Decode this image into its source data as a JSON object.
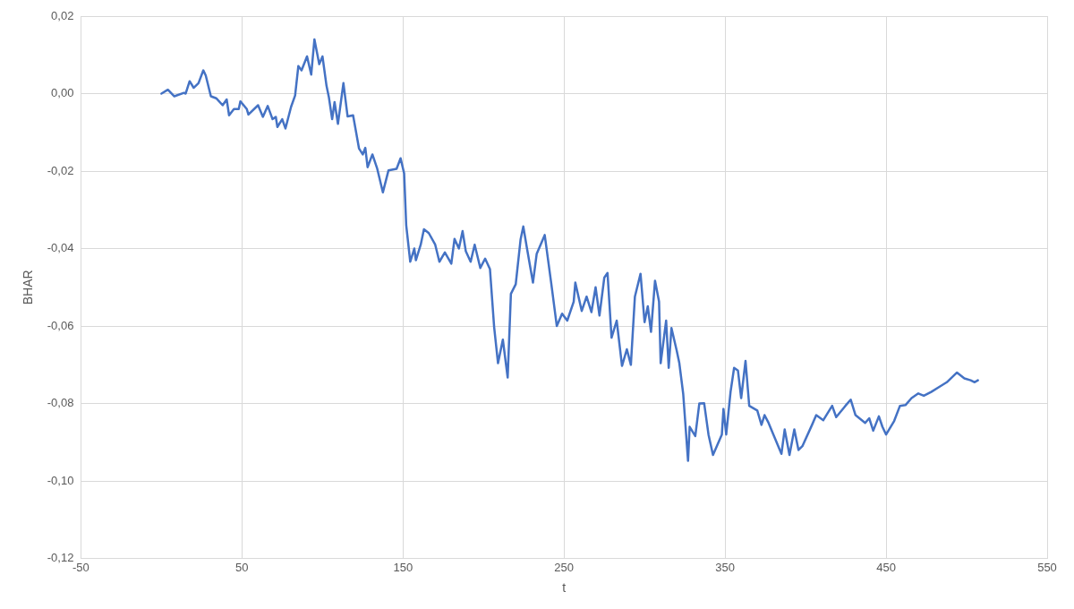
{
  "chart_data": {
    "type": "line",
    "xlabel": "t",
    "ylabel": "BHAR",
    "xlim": [
      -50,
      550
    ],
    "ylim": [
      -0.12,
      0.02
    ],
    "xticks": [
      -50,
      50,
      150,
      250,
      350,
      450,
      550
    ],
    "yticks": [
      {
        "value": -0.12,
        "label": "-0,12"
      },
      {
        "value": -0.1,
        "label": "-0,10"
      },
      {
        "value": -0.08,
        "label": "-0,08"
      },
      {
        "value": -0.06,
        "label": "-0,06"
      },
      {
        "value": -0.04,
        "label": "-0,04"
      },
      {
        "value": -0.02,
        "label": "-0,02"
      },
      {
        "value": 0,
        "label": "0,00"
      },
      {
        "value": 0.02,
        "label": "0,02"
      }
    ],
    "grid": true,
    "legend": false,
    "marker": "none",
    "line_style": "solid",
    "series": [
      {
        "color": "#4472c4",
        "x": [
          0,
          4,
          8,
          14,
          15,
          17.5,
          20,
          23,
          26,
          27.5,
          30.7,
          34,
          38,
          40.5,
          42,
          45,
          48,
          49,
          53,
          54,
          60,
          63,
          66,
          69,
          71,
          72,
          75,
          77,
          80.5,
          83,
          85,
          87,
          90.4,
          93,
          95,
          98,
          100,
          102.5,
          104,
          106,
          107.5,
          109.6,
          113,
          115.6,
          119,
          122.7,
          125,
          126.6,
          128,
          131,
          134,
          137.5,
          141,
          146,
          148.5,
          150.7,
          152,
          154.5,
          157,
          158,
          161,
          163,
          166,
          170,
          172.6,
          176,
          180,
          182,
          184.7,
          187,
          189,
          192,
          194.5,
          198,
          201,
          204,
          206.6,
          209,
          212,
          215,
          217,
          220,
          223,
          224.7,
          227,
          230.7,
          233,
          238,
          242,
          245.5,
          248.8,
          252,
          256,
          257,
          261,
          264,
          267,
          269.6,
          272,
          275,
          277,
          279.5,
          282.7,
          286,
          289,
          291.5,
          294,
          297.5,
          300,
          302,
          304,
          306.5,
          309,
          310,
          313.4,
          315,
          316.7,
          320,
          321.6,
          324,
          327,
          328,
          331.5,
          334,
          337,
          339.7,
          342.5,
          348,
          349,
          350.7,
          353.4,
          355.6,
          358,
          360,
          362.7,
          365,
          370,
          372.6,
          374.5,
          377,
          380,
          385,
          387,
          390,
          393,
          395.6,
          398,
          404,
          406.6,
          411,
          416.5,
          419,
          424.7,
          428,
          431,
          437,
          439.5,
          442,
          445.5,
          447.7,
          450,
          455,
          458.6,
          462,
          465.8,
          470,
          473.4,
          478,
          483,
          487.7,
          494,
          498.6,
          502.5,
          505,
          507
        ],
        "values": [
          0,
          0.001,
          -0.0007,
          0.0002,
          0,
          0.0032,
          0.0015,
          0.0027,
          0.006,
          0.0047,
          -0.0007,
          -0.0012,
          -0.003,
          -0.0015,
          -0.0056,
          -0.004,
          -0.004,
          -0.002,
          -0.004,
          -0.0054,
          -0.003,
          -0.006,
          -0.0032,
          -0.0066,
          -0.006,
          -0.0086,
          -0.0066,
          -0.009,
          -0.0034,
          -0.0005,
          0.0071,
          0.006,
          0.0096,
          0.0049,
          0.014,
          0.0076,
          0.0096,
          0.002,
          -0.001,
          -0.0066,
          -0.0022,
          -0.0078,
          0.0027,
          -0.0059,
          -0.0056,
          -0.0142,
          -0.0157,
          -0.014,
          -0.019,
          -0.0157,
          -0.0194,
          -0.0255,
          -0.0198,
          -0.0194,
          -0.0167,
          -0.0206,
          -0.034,
          -0.0434,
          -0.04,
          -0.043,
          -0.039,
          -0.035,
          -0.036,
          -0.039,
          -0.0434,
          -0.041,
          -0.0439,
          -0.0375,
          -0.04,
          -0.0355,
          -0.0407,
          -0.0434,
          -0.039,
          -0.045,
          -0.0426,
          -0.0453,
          -0.0603,
          -0.0696,
          -0.0635,
          -0.0733,
          -0.0517,
          -0.0492,
          -0.0377,
          -0.0343,
          -0.04,
          -0.0488,
          -0.0414,
          -0.0365,
          -0.0488,
          -0.06,
          -0.0568,
          -0.0586,
          -0.0537,
          -0.0488,
          -0.0561,
          -0.0524,
          -0.0564,
          -0.05,
          -0.0573,
          -0.0475,
          -0.0463,
          -0.063,
          -0.0586,
          -0.0703,
          -0.066,
          -0.07,
          -0.0524,
          -0.0465,
          -0.059,
          -0.0549,
          -0.0615,
          -0.0483,
          -0.0537,
          -0.0696,
          -0.0586,
          -0.0708,
          -0.0605,
          -0.0664,
          -0.0696,
          -0.0775,
          -0.0948,
          -0.086,
          -0.0884,
          -0.08,
          -0.0799,
          -0.088,
          -0.0933,
          -0.088,
          -0.0814,
          -0.088,
          -0.077,
          -0.0708,
          -0.0715,
          -0.0786,
          -0.069,
          -0.0806,
          -0.0818,
          -0.0855,
          -0.083,
          -0.085,
          -0.088,
          -0.093,
          -0.0867,
          -0.0933,
          -0.0867,
          -0.092,
          -0.091,
          -0.0855,
          -0.083,
          -0.0843,
          -0.0806,
          -0.0835,
          -0.0806,
          -0.079,
          -0.083,
          -0.085,
          -0.0838,
          -0.087,
          -0.0833,
          -0.086,
          -0.088,
          -0.0845,
          -0.0806,
          -0.0804,
          -0.0786,
          -0.0774,
          -0.078,
          -0.077,
          -0.0757,
          -0.0745,
          -0.072,
          -0.0735,
          -0.074,
          -0.0745,
          -0.074
        ]
      }
    ]
  }
}
